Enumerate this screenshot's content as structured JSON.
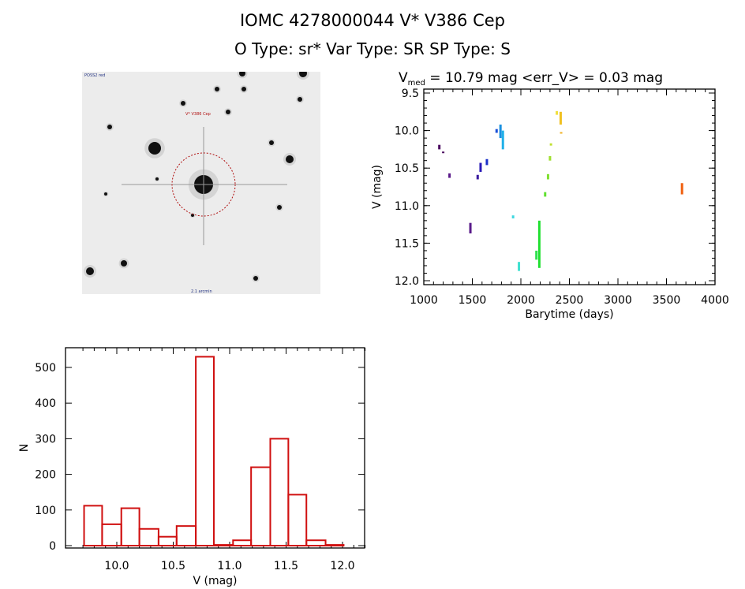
{
  "header": {
    "title": "IOMC 4278000044    V* V386 Cep",
    "subtitle": "O Type: sr*   Var Type: SR   SP Type: S"
  },
  "image_panel": {
    "target_label": "V* V386 Cep",
    "corner_label": "POSS2 red",
    "bottom_label": "2.1 arcmin"
  },
  "chart_data": [
    {
      "type": "scatter",
      "title_prefix": "V",
      "title_sub": "med",
      "title_rest": " = 10.79 mag <err_V> = 0.03 mag",
      "xlabel": "Barytime (days)",
      "ylabel": "V (mag)",
      "xlim": [
        1000,
        4000
      ],
      "ylim": [
        12.0,
        9.5
      ],
      "y_inverted": true,
      "xticks": [
        1000,
        1500,
        2000,
        2500,
        3000,
        3500,
        4000
      ],
      "xtick_labels": [
        "1000",
        "1500",
        "2000",
        "2500",
        "3000",
        "3500",
        "4000"
      ],
      "yticks": [
        9.5,
        10.0,
        10.5,
        11.0,
        11.5,
        12.0
      ],
      "ytick_labels": [
        "9.5",
        "10.0",
        "10.5",
        "11.0",
        "11.5",
        "12.0"
      ],
      "points": [
        {
          "t": 1160,
          "v": [
            10.19,
            10.25
          ],
          "color": "#4b0a60"
        },
        {
          "t": 1200,
          "v": [
            10.28,
            10.3
          ],
          "color": "#4b0a60"
        },
        {
          "t": 1265,
          "v": [
            10.57,
            10.63
          ],
          "color": "#5a1a8a"
        },
        {
          "t": 1480,
          "v": [
            11.23,
            11.37
          ],
          "color": "#5a1a8a"
        },
        {
          "t": 1555,
          "v": [
            10.59,
            10.65
          ],
          "color": "#3a1aa0"
        },
        {
          "t": 1585,
          "v": [
            10.43,
            10.55
          ],
          "color": "#2a1ab8"
        },
        {
          "t": 1650,
          "v": [
            10.38,
            10.46
          ],
          "color": "#1a30c8"
        },
        {
          "t": 1750,
          "v": [
            9.98,
            10.03
          ],
          "color": "#1a50d8"
        },
        {
          "t": 1790,
          "v": [
            9.92,
            10.1
          ],
          "color": "#1a90e0"
        },
        {
          "t": 1815,
          "v": [
            10.0,
            10.25
          ],
          "color": "#20b0e8"
        },
        {
          "t": 1920,
          "v": [
            11.13,
            11.17
          ],
          "color": "#40d8e0"
        },
        {
          "t": 1980,
          "v": [
            11.75,
            11.87
          ],
          "color": "#40e0d0"
        },
        {
          "t": 2160,
          "v": [
            11.6,
            11.72
          ],
          "color": "#30e050"
        },
        {
          "t": 2190,
          "v": [
            11.2,
            11.83
          ],
          "color": "#20e030"
        },
        {
          "t": 2250,
          "v": [
            10.82,
            10.88
          ],
          "color": "#60e030"
        },
        {
          "t": 2280,
          "v": [
            10.58,
            10.65
          ],
          "color": "#80e030"
        },
        {
          "t": 2300,
          "v": [
            10.34,
            10.4
          ],
          "color": "#a0e030"
        },
        {
          "t": 2310,
          "v": [
            10.17,
            10.2
          ],
          "color": "#c0e030"
        },
        {
          "t": 2370,
          "v": [
            9.74,
            9.79
          ],
          "color": "#f0e040"
        },
        {
          "t": 2410,
          "v": [
            9.75,
            9.92
          ],
          "color": "#f0c020"
        },
        {
          "t": 2415,
          "v": [
            10.02,
            10.04
          ],
          "color": "#f0b020"
        },
        {
          "t": 3660,
          "v": [
            10.7,
            10.85
          ],
          "color": "#f06010"
        }
      ]
    },
    {
      "type": "bar",
      "subtype": "histogram",
      "xlabel": "V (mag)",
      "ylabel": "N",
      "xlim": [
        9.6,
        12.2
      ],
      "ylim": [
        0,
        560
      ],
      "bin_edges": [
        9.71,
        9.87,
        10.04,
        10.2,
        10.37,
        10.53,
        10.7,
        10.86,
        11.03,
        11.19,
        11.36,
        11.52,
        11.68,
        11.85,
        12.01
      ],
      "values": [
        112,
        60,
        105,
        47,
        25,
        55,
        530,
        2,
        15,
        220,
        300,
        143,
        15,
        2
      ],
      "xticks": [
        10.0,
        10.5,
        11.0,
        11.5,
        12.0
      ],
      "xtick_labels": [
        "10.0",
        "10.5",
        "11.0",
        "11.5",
        "12.0"
      ],
      "yticks": [
        0,
        100,
        200,
        300,
        400,
        500
      ],
      "ytick_labels": [
        "0",
        "100",
        "200",
        "300",
        "400",
        "500"
      ],
      "bar_color": "#d01010"
    }
  ]
}
